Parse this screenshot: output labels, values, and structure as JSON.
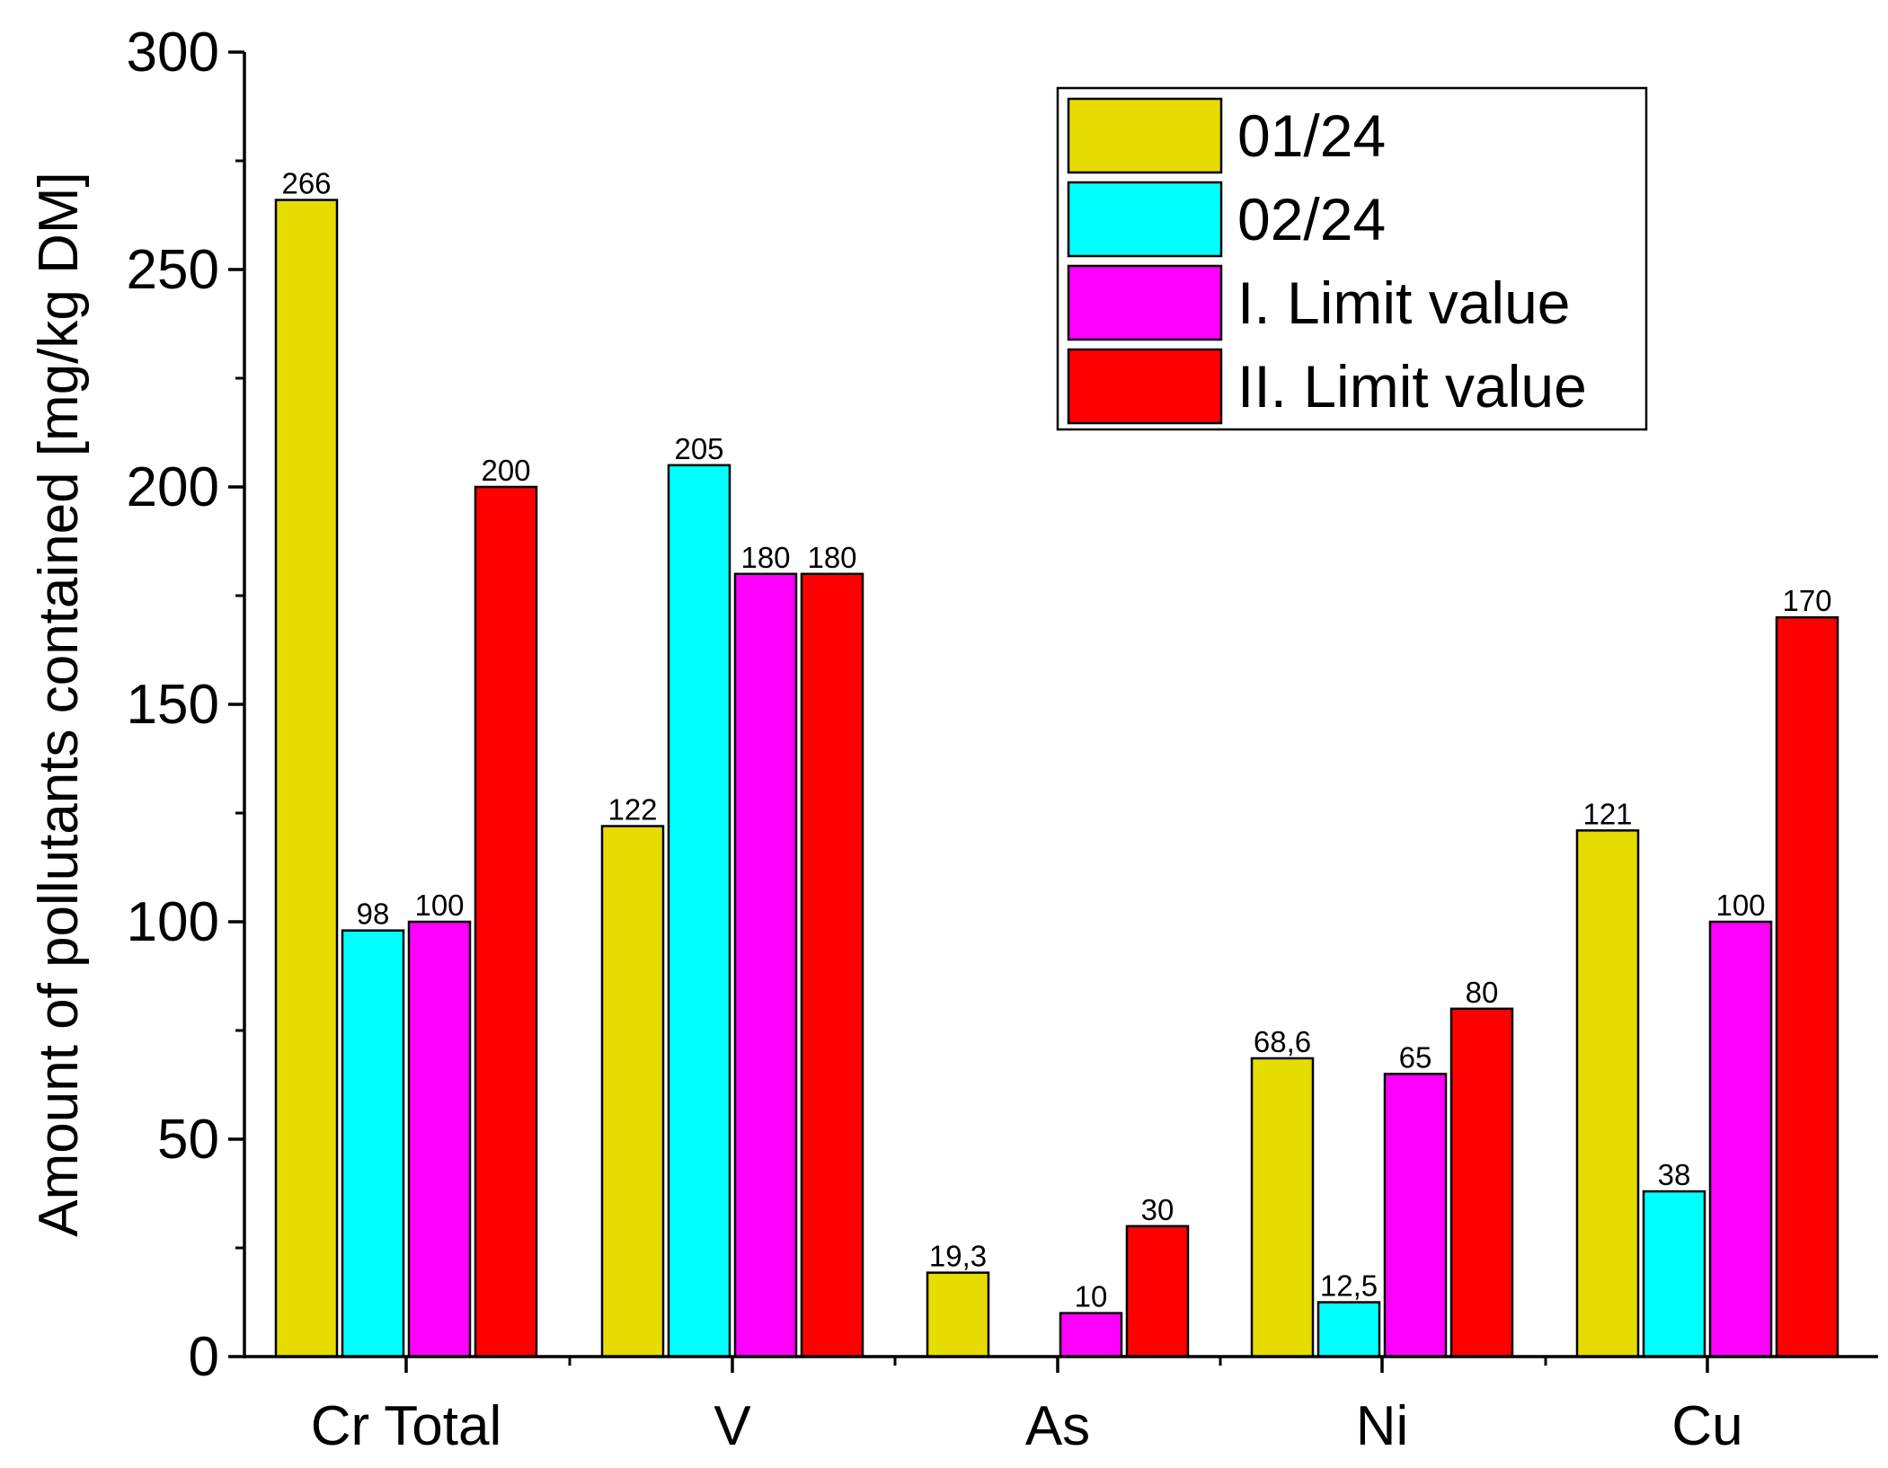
{
  "chart_data": {
    "type": "bar",
    "title": "",
    "xlabel": "",
    "ylabel": "Amount of pollutants contained [mg/kg DM]",
    "ylim": [
      0,
      300
    ],
    "yticks": [
      0,
      50,
      100,
      150,
      200,
      250,
      300
    ],
    "categories": [
      "Cr Total",
      "V",
      "As",
      "Ni",
      "Cu"
    ],
    "legend_position": "top-right",
    "series": [
      {
        "name": "01/24",
        "color": "#e6dc00",
        "values": [
          266,
          122,
          19.3,
          68.6,
          121
        ],
        "labels": [
          "266",
          "122",
          "19,3",
          "68,6",
          "121"
        ]
      },
      {
        "name": "02/24",
        "color": "#00ffff",
        "values": [
          98,
          205,
          null,
          12.5,
          38
        ],
        "labels": [
          "98",
          "205",
          "",
          "12,5",
          "38"
        ]
      },
      {
        "name": "I. Limit value",
        "color": "#ff00ff",
        "values": [
          100,
          180,
          10,
          65,
          100
        ],
        "labels": [
          "100",
          "180",
          "10",
          "65",
          "100"
        ]
      },
      {
        "name": "II. Limit value",
        "color": "#ff0000",
        "values": [
          200,
          180,
          30,
          80,
          170
        ],
        "labels": [
          "200",
          "180",
          "30",
          "80",
          "170"
        ]
      }
    ]
  }
}
